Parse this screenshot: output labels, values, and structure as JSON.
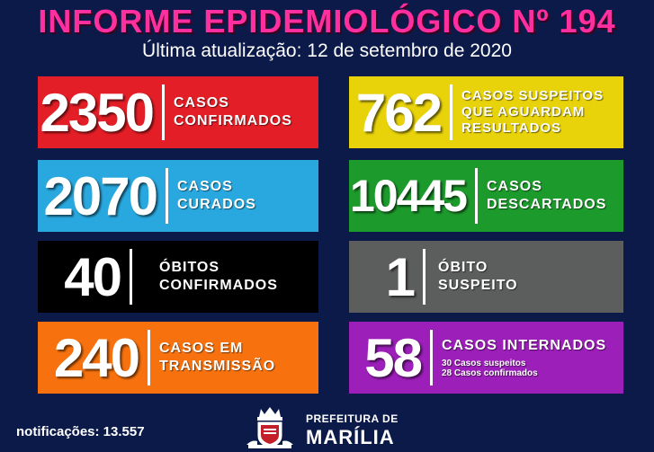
{
  "header": {
    "title": "INFORME EPIDEMIOLÓGICO Nº 194",
    "subtitle": "Última atualização: 12 de setembro de 2020"
  },
  "cards": {
    "confirmed": {
      "value": "2350",
      "line1": "CASOS",
      "line2": "CONFIRMADOS",
      "color": "#e41e26"
    },
    "suspected": {
      "value": "762",
      "line1": "CASOS SUSPEITOS",
      "line2": "QUE AGUARDAM",
      "line3": "RESULTADOS",
      "color": "#e8d20a"
    },
    "cured": {
      "value": "2070",
      "line1": "CASOS",
      "line2": "CURADOS",
      "color": "#29a8df"
    },
    "discarded": {
      "value": "10445",
      "line1": "CASOS",
      "line2": "DESCARTADOS",
      "color": "#1d9a2c"
    },
    "deaths": {
      "value": "40",
      "line1": "ÓBITOS",
      "line2": "CONFIRMADOS",
      "color": "#000000"
    },
    "suspected_death": {
      "value": "1",
      "line1": "ÓBITO",
      "line2": "SUSPEITO",
      "color": "#5c5d5d"
    },
    "transmission": {
      "value": "240",
      "line1": "CASOS EM",
      "line2": "TRANSMISSÃO",
      "color": "#f7720e"
    },
    "hospitalized": {
      "value": "58",
      "line1": "CASOS INTERNADOS",
      "detail1": "30 Casos suspeitos",
      "detail2": "28 Casos confirmados",
      "color": "#9b1fb8"
    }
  },
  "footer": {
    "notifications": "notificações: 13.557",
    "org_small": "PREFEITURA DE",
    "org_big": "MARÍLIA",
    "crest_icon": "city-crest-icon"
  }
}
